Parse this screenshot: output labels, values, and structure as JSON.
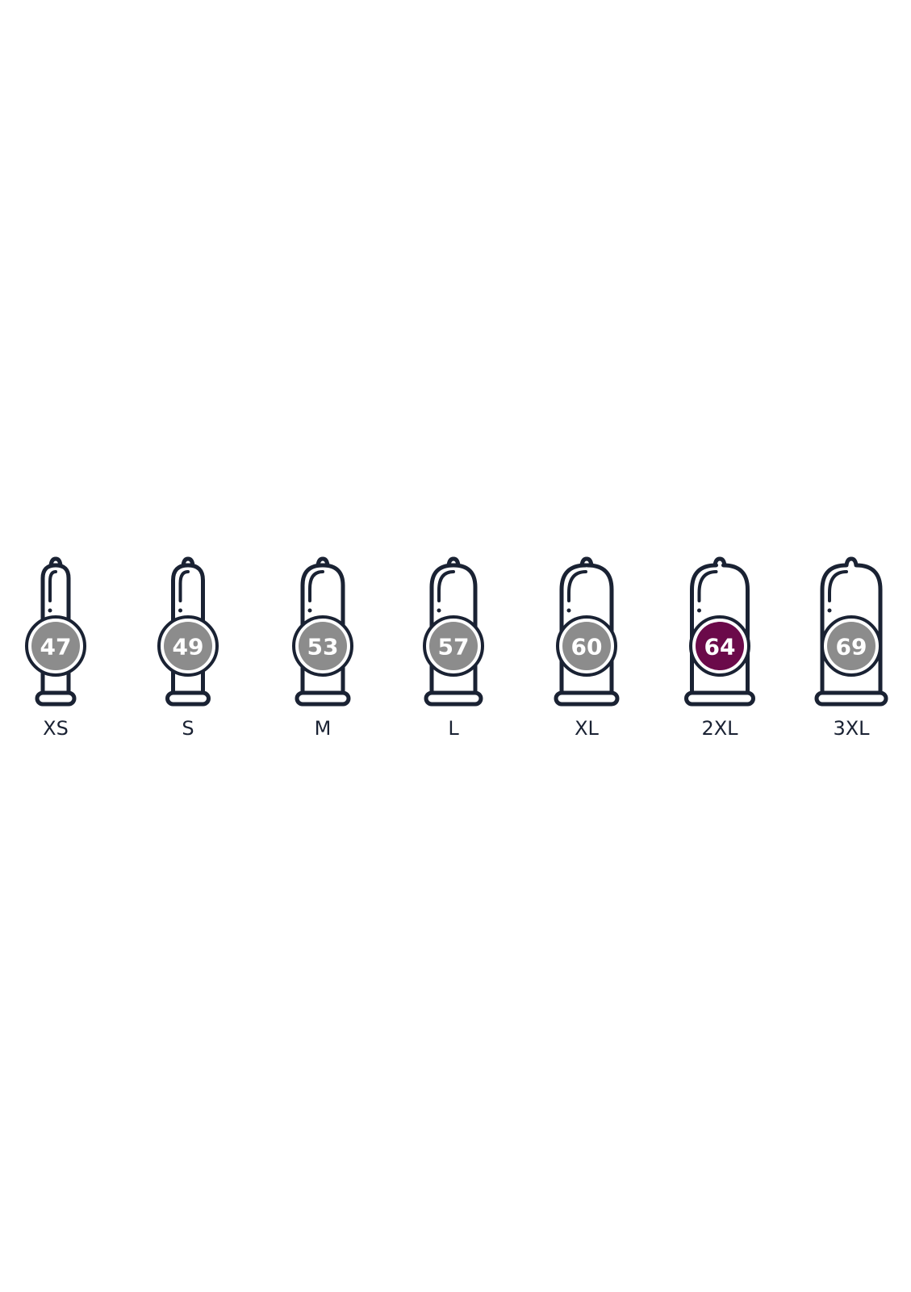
{
  "colors": {
    "outline": "#1a2233",
    "default_badge": "#8c8c8c",
    "highlight_badge": "#6b0a4a"
  },
  "sizes": [
    {
      "label": "XS",
      "value": "47",
      "highlighted": false
    },
    {
      "label": "S",
      "value": "49",
      "highlighted": false
    },
    {
      "label": "M",
      "value": "53",
      "highlighted": false
    },
    {
      "label": "L",
      "value": "57",
      "highlighted": false
    },
    {
      "label": "XL",
      "value": "60",
      "highlighted": false
    },
    {
      "label": "2XL",
      "value": "64",
      "highlighted": true
    },
    {
      "label": "3XL",
      "value": "69",
      "highlighted": false
    }
  ]
}
